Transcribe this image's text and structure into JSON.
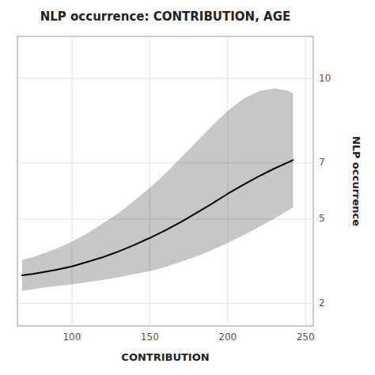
{
  "chart_data": {
    "type": "line",
    "title": "NLP occurrence: CONTRIBUTION, AGE",
    "x_label": "CONTRIBUTION",
    "y_label": "NLP occurrence",
    "x": [
      68,
      75,
      80,
      90,
      100,
      110,
      120,
      130,
      140,
      150,
      160,
      170,
      180,
      190,
      200,
      210,
      220,
      230,
      238,
      242
    ],
    "series": [
      {
        "color": "#000000",
        "values": [
          3.0,
          3.05,
          3.1,
          3.2,
          3.32,
          3.48,
          3.65,
          3.85,
          4.08,
          4.33,
          4.6,
          4.9,
          5.22,
          5.55,
          5.9,
          6.22,
          6.52,
          6.8,
          7.0,
          7.1
        ],
        "ci_upper": [
          3.55,
          3.65,
          3.75,
          3.95,
          4.2,
          4.5,
          4.85,
          5.22,
          5.65,
          6.12,
          6.62,
          7.18,
          7.75,
          8.32,
          8.85,
          9.28,
          9.55,
          9.65,
          9.58,
          9.48
        ],
        "ci_lower": [
          2.45,
          2.5,
          2.55,
          2.62,
          2.68,
          2.76,
          2.84,
          2.93,
          3.04,
          3.15,
          3.3,
          3.48,
          3.68,
          3.9,
          4.15,
          4.42,
          4.72,
          5.02,
          5.28,
          5.42
        ]
      }
    ],
    "xlim": [
      65,
      255
    ],
    "xticks": [
      100,
      150,
      200,
      250
    ],
    "ylim": [
      1.2,
      11.5
    ],
    "yticks": [
      2,
      5,
      7,
      10
    ],
    "grid": true
  }
}
